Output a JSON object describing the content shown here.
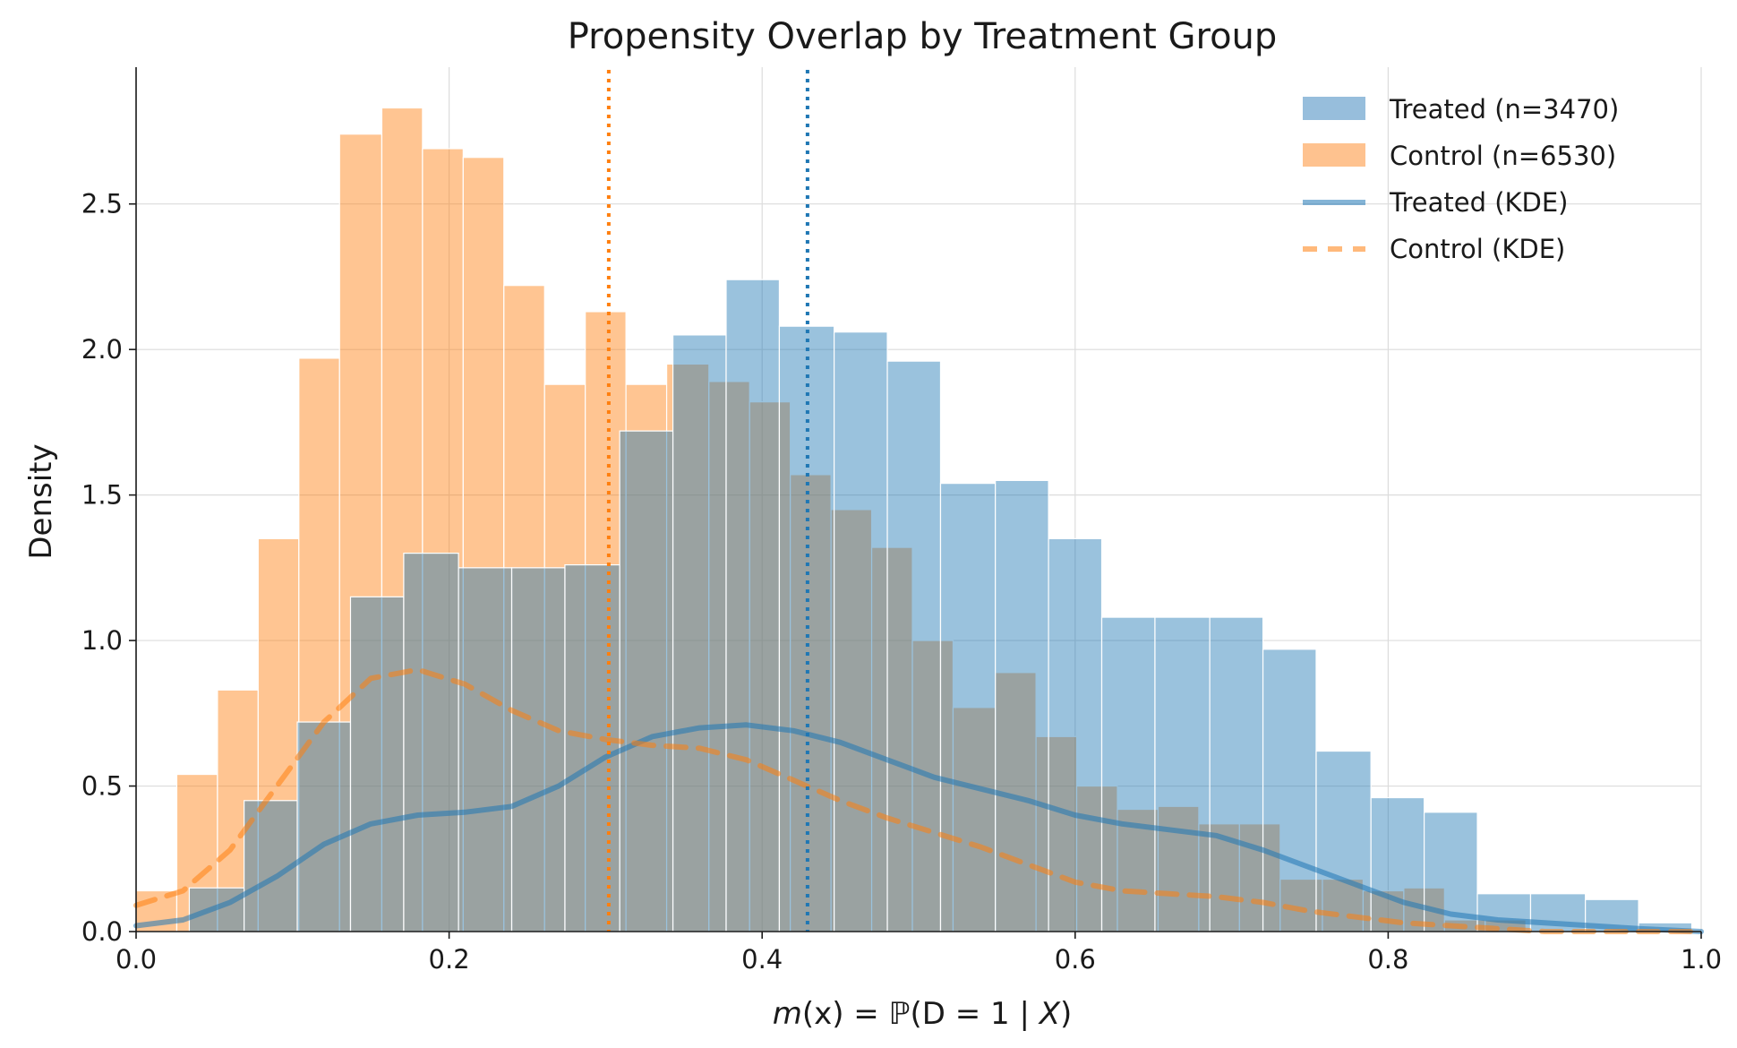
{
  "chart_data": {
    "type": "bar",
    "title": "Propensity Overlap by Treatment Group",
    "xlabel_parts": {
      "m": "m",
      "x": "(x) = ",
      "P": "ℙ",
      "D": "(D",
      "eq": " = 1 | ",
      "X": "X",
      "close": ")"
    },
    "ylabel": "Density",
    "xlim": [
      0.0,
      1.0
    ],
    "ylim": [
      0.0,
      2.97
    ],
    "xticks": [
      "0.0",
      "0.2",
      "0.4",
      "0.6",
      "0.8",
      "1.0"
    ],
    "xtick_values": [
      0.0,
      0.2,
      0.4,
      0.6,
      0.8,
      1.0
    ],
    "yticks": [
      "0.0",
      "0.5",
      "1.0",
      "1.5",
      "2.0",
      "2.5"
    ],
    "ytick_values": [
      0.0,
      0.5,
      1.0,
      1.5,
      2.0,
      2.5
    ],
    "grid": true,
    "legend_position": "top-right",
    "colors": {
      "treated": "#1f77b4",
      "control": "#ff7f0e",
      "treated_fill": "#97bedc",
      "control_fill": "#fec28f"
    },
    "series": [
      {
        "name": "Treated (n=3470)",
        "bins": [
          [
            0.034,
            0.069,
            0.15
          ],
          [
            0.069,
            0.103,
            0.45
          ],
          [
            0.103,
            0.137,
            0.72
          ],
          [
            0.137,
            0.171,
            1.15
          ],
          [
            0.171,
            0.206,
            1.3
          ],
          [
            0.206,
            0.24,
            1.25
          ],
          [
            0.24,
            0.274,
            1.25
          ],
          [
            0.274,
            0.309,
            1.26
          ],
          [
            0.309,
            0.343,
            1.72
          ],
          [
            0.343,
            0.377,
            2.05
          ],
          [
            0.377,
            0.411,
            2.24
          ],
          [
            0.411,
            0.446,
            2.08
          ],
          [
            0.446,
            0.48,
            2.06
          ],
          [
            0.48,
            0.514,
            1.96
          ],
          [
            0.514,
            0.549,
            1.54
          ],
          [
            0.549,
            0.583,
            1.55
          ],
          [
            0.583,
            0.617,
            1.35
          ],
          [
            0.617,
            0.651,
            1.08
          ],
          [
            0.651,
            0.686,
            1.08
          ],
          [
            0.686,
            0.72,
            1.08
          ],
          [
            0.72,
            0.754,
            0.97
          ],
          [
            0.754,
            0.789,
            0.62
          ],
          [
            0.789,
            0.823,
            0.46
          ],
          [
            0.823,
            0.857,
            0.41
          ],
          [
            0.857,
            0.891,
            0.13
          ],
          [
            0.891,
            0.926,
            0.13
          ],
          [
            0.926,
            0.96,
            0.11
          ],
          [
            0.96,
            0.994,
            0.03
          ]
        ]
      },
      {
        "name": "Control (n=6530)",
        "bins": [
          [
            0.0,
            0.026,
            0.14
          ],
          [
            0.026,
            0.052,
            0.54
          ],
          [
            0.052,
            0.078,
            0.83
          ],
          [
            0.078,
            0.104,
            1.35
          ],
          [
            0.104,
            0.13,
            1.97
          ],
          [
            0.13,
            0.157,
            2.74
          ],
          [
            0.157,
            0.183,
            2.83
          ],
          [
            0.183,
            0.209,
            2.69
          ],
          [
            0.209,
            0.235,
            2.66
          ],
          [
            0.235,
            0.261,
            2.22
          ],
          [
            0.261,
            0.287,
            1.88
          ],
          [
            0.287,
            0.313,
            2.13
          ],
          [
            0.313,
            0.339,
            1.88
          ],
          [
            0.339,
            0.366,
            1.95
          ],
          [
            0.366,
            0.392,
            1.89
          ],
          [
            0.392,
            0.418,
            1.82
          ],
          [
            0.418,
            0.444,
            1.57
          ],
          [
            0.444,
            0.47,
            1.45
          ],
          [
            0.47,
            0.496,
            1.32
          ],
          [
            0.496,
            0.522,
            1.0
          ],
          [
            0.522,
            0.549,
            0.77
          ],
          [
            0.549,
            0.575,
            0.89
          ],
          [
            0.575,
            0.601,
            0.67
          ],
          [
            0.601,
            0.627,
            0.5
          ],
          [
            0.627,
            0.653,
            0.42
          ],
          [
            0.653,
            0.679,
            0.43
          ],
          [
            0.679,
            0.705,
            0.37
          ],
          [
            0.705,
            0.731,
            0.37
          ],
          [
            0.731,
            0.758,
            0.18
          ],
          [
            0.758,
            0.784,
            0.18
          ],
          [
            0.784,
            0.81,
            0.14
          ],
          [
            0.81,
            0.836,
            0.15
          ],
          [
            0.836,
            0.862,
            0.04
          ],
          [
            0.862,
            0.888,
            0.04
          ],
          [
            0.888,
            0.914,
            0.0
          ]
        ]
      },
      {
        "name": "Treated (KDE)",
        "type": "line",
        "style": "solid",
        "x": [
          0.0,
          0.03,
          0.06,
          0.09,
          0.12,
          0.15,
          0.18,
          0.21,
          0.24,
          0.27,
          0.3,
          0.33,
          0.36,
          0.39,
          0.42,
          0.45,
          0.48,
          0.51,
          0.54,
          0.57,
          0.6,
          0.63,
          0.66,
          0.69,
          0.72,
          0.75,
          0.78,
          0.81,
          0.84,
          0.87,
          0.9,
          0.93,
          0.96,
          1.0
        ],
        "y": [
          0.02,
          0.04,
          0.1,
          0.19,
          0.3,
          0.37,
          0.4,
          0.41,
          0.43,
          0.5,
          0.6,
          0.67,
          0.7,
          0.71,
          0.69,
          0.65,
          0.59,
          0.53,
          0.49,
          0.45,
          0.4,
          0.37,
          0.35,
          0.33,
          0.28,
          0.22,
          0.16,
          0.1,
          0.06,
          0.04,
          0.03,
          0.02,
          0.01,
          0.0
        ]
      },
      {
        "name": "Control (KDE)",
        "type": "line",
        "style": "dashed",
        "x": [
          0.0,
          0.03,
          0.06,
          0.09,
          0.12,
          0.15,
          0.18,
          0.21,
          0.24,
          0.27,
          0.3,
          0.33,
          0.36,
          0.39,
          0.42,
          0.45,
          0.48,
          0.51,
          0.54,
          0.57,
          0.6,
          0.63,
          0.66,
          0.69,
          0.72,
          0.75,
          0.78,
          0.81,
          0.84,
          0.87,
          0.9,
          0.93,
          0.96,
          1.0
        ],
        "y": [
          0.09,
          0.14,
          0.28,
          0.5,
          0.72,
          0.87,
          0.9,
          0.85,
          0.76,
          0.69,
          0.66,
          0.64,
          0.63,
          0.59,
          0.52,
          0.45,
          0.39,
          0.34,
          0.29,
          0.23,
          0.17,
          0.14,
          0.13,
          0.12,
          0.1,
          0.07,
          0.05,
          0.03,
          0.02,
          0.01,
          0.0,
          0.0,
          0.0,
          0.0
        ]
      }
    ],
    "annotations": [
      {
        "type": "vline",
        "x": 0.302,
        "color": "#ff7f0e",
        "style": "dotted"
      },
      {
        "type": "vline",
        "x": 0.429,
        "color": "#1f77b4",
        "style": "dotted"
      }
    ]
  }
}
